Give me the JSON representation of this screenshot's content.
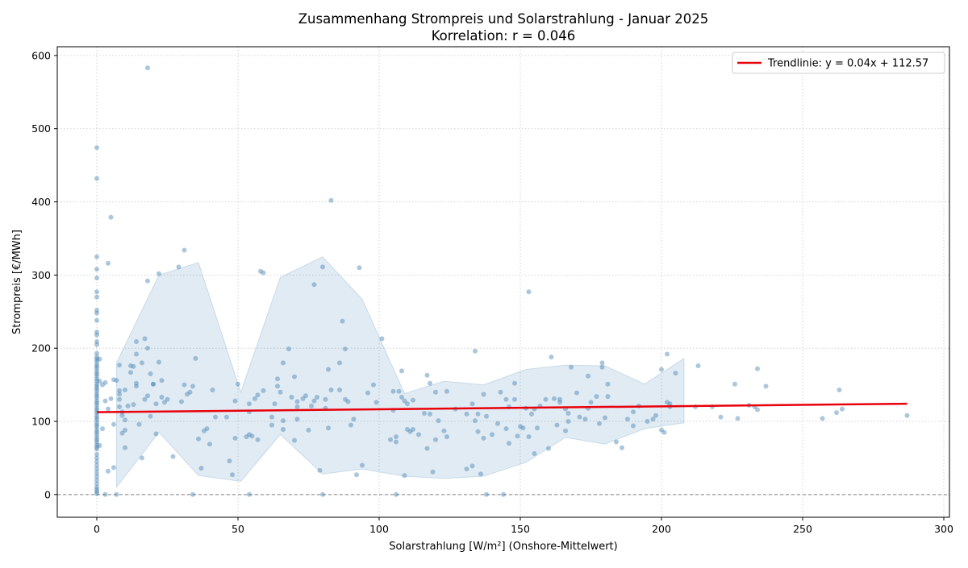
{
  "chart_data": {
    "type": "scatter",
    "title": "Zusammenhang Strompreis und Solarstrahlung - Januar 2025",
    "subtitle": "Korrelation: r = 0.046",
    "xlabel": "Solarstrahlung [W/m²] (Onshore-Mittelwert)",
    "ylabel": "Strompreis [€/MWh]",
    "xlim": [
      -14,
      302
    ],
    "ylim": [
      -31,
      612
    ],
    "xticks": [
      0,
      50,
      100,
      150,
      200,
      250,
      300
    ],
    "yticks": [
      0,
      100,
      200,
      300,
      400,
      500,
      600
    ],
    "grid": true,
    "legend_position": "top-right",
    "colors": {
      "points": "#4682b4",
      "trend": "#e8000b",
      "band": "#4682b4",
      "zero_line": "#808080"
    },
    "trendline": {
      "label": "Trendlinie: y = 0.04x + 112.57",
      "slope": 0.04,
      "intercept": 112.57,
      "x_range": [
        0,
        287
      ]
    },
    "zero_line_y": 0,
    "band": {
      "x": [
        7,
        22,
        36,
        51,
        65,
        80,
        94,
        109,
        123,
        137,
        152,
        166,
        180,
        194,
        208
      ],
      "upper": [
        180,
        300,
        317,
        140,
        297,
        325,
        267,
        138,
        155,
        150,
        171,
        177,
        176,
        151,
        186
      ],
      "lower": [
        10,
        85,
        26,
        18,
        82,
        28,
        35,
        25,
        22,
        25,
        44,
        78,
        69,
        90,
        98
      ]
    },
    "points": [
      [
        0,
        474
      ],
      [
        0,
        432
      ],
      [
        0,
        325
      ],
      [
        0,
        308
      ],
      [
        0,
        296
      ],
      [
        0,
        277
      ],
      [
        0,
        270
      ],
      [
        0,
        252
      ],
      [
        0,
        248
      ],
      [
        0,
        238
      ],
      [
        0,
        222
      ],
      [
        0,
        218
      ],
      [
        0,
        209
      ],
      [
        0,
        205
      ],
      [
        0,
        193
      ],
      [
        0,
        188
      ],
      [
        0,
        185
      ],
      [
        0,
        182
      ],
      [
        0,
        178
      ],
      [
        0,
        175
      ],
      [
        0,
        172
      ],
      [
        0,
        168
      ],
      [
        0,
        165
      ],
      [
        0,
        162
      ],
      [
        0,
        158
      ],
      [
        0,
        155
      ],
      [
        0,
        151
      ],
      [
        0,
        148
      ],
      [
        0,
        145
      ],
      [
        0,
        142
      ],
      [
        0,
        138
      ],
      [
        0,
        135
      ],
      [
        0,
        132
      ],
      [
        0,
        128
      ],
      [
        0,
        125
      ],
      [
        0,
        122
      ],
      [
        0,
        118
      ],
      [
        0,
        115
      ],
      [
        0,
        112
      ],
      [
        0,
        108
      ],
      [
        0,
        105
      ],
      [
        0,
        102
      ],
      [
        0,
        98
      ],
      [
        0,
        95
      ],
      [
        0,
        92
      ],
      [
        0,
        88
      ],
      [
        0,
        85
      ],
      [
        0,
        82
      ],
      [
        0,
        78
      ],
      [
        0,
        75
      ],
      [
        0,
        72
      ],
      [
        0,
        68
      ],
      [
        0,
        65
      ],
      [
        0,
        62
      ],
      [
        0,
        55
      ],
      [
        0,
        50
      ],
      [
        0,
        45
      ],
      [
        0,
        40
      ],
      [
        0,
        35
      ],
      [
        0,
        30
      ],
      [
        0,
        25
      ],
      [
        0,
        20
      ],
      [
        0,
        15
      ],
      [
        0,
        10
      ],
      [
        0,
        7
      ],
      [
        0,
        4
      ],
      [
        0,
        1
      ],
      [
        1,
        185
      ],
      [
        1,
        155
      ],
      [
        1,
        67
      ],
      [
        2,
        150
      ],
      [
        2,
        90
      ],
      [
        3,
        128
      ],
      [
        3,
        0
      ],
      [
        3,
        153
      ],
      [
        4,
        316
      ],
      [
        4,
        117
      ],
      [
        4,
        32
      ],
      [
        5,
        379
      ],
      [
        5,
        131
      ],
      [
        6,
        157
      ],
      [
        6,
        96
      ],
      [
        6,
        37
      ],
      [
        7,
        0
      ],
      [
        7,
        156
      ],
      [
        8,
        120
      ],
      [
        8,
        130
      ],
      [
        8,
        142
      ],
      [
        8,
        177
      ],
      [
        8,
        137
      ],
      [
        9,
        108
      ],
      [
        9,
        84
      ],
      [
        9,
        113
      ],
      [
        10,
        88
      ],
      [
        10,
        64
      ],
      [
        10,
        102
      ],
      [
        10,
        143
      ],
      [
        11,
        121
      ],
      [
        12,
        176
      ],
      [
        12,
        167
      ],
      [
        13,
        123
      ],
      [
        13,
        175
      ],
      [
        14,
        209
      ],
      [
        14,
        148
      ],
      [
        14,
        192
      ],
      [
        14,
        152
      ],
      [
        15,
        96
      ],
      [
        16,
        180
      ],
      [
        16,
        50
      ],
      [
        17,
        213
      ],
      [
        17,
        130
      ],
      [
        18,
        292
      ],
      [
        18,
        583
      ],
      [
        18,
        200
      ],
      [
        18,
        135
      ],
      [
        19,
        165
      ],
      [
        19,
        107
      ],
      [
        20,
        151
      ],
      [
        20,
        151
      ],
      [
        21,
        124
      ],
      [
        21,
        83
      ],
      [
        22,
        302
      ],
      [
        22,
        181
      ],
      [
        23,
        133
      ],
      [
        23,
        156
      ],
      [
        24,
        126
      ],
      [
        25,
        130
      ],
      [
        27,
        52
      ],
      [
        29,
        311
      ],
      [
        30,
        127
      ],
      [
        31,
        334
      ],
      [
        31,
        150
      ],
      [
        32,
        137
      ],
      [
        33,
        140
      ],
      [
        34,
        0
      ],
      [
        34,
        148
      ],
      [
        35,
        186
      ],
      [
        36,
        76
      ],
      [
        37,
        36
      ],
      [
        38,
        87
      ],
      [
        39,
        90
      ],
      [
        40,
        69
      ],
      [
        41,
        143
      ],
      [
        42,
        106
      ],
      [
        46,
        106
      ],
      [
        47,
        46
      ],
      [
        48,
        27
      ],
      [
        49,
        77
      ],
      [
        49,
        128
      ],
      [
        50,
        151
      ],
      [
        53,
        79
      ],
      [
        54,
        82
      ],
      [
        54,
        113
      ],
      [
        54,
        0
      ],
      [
        54,
        124
      ],
      [
        55,
        80
      ],
      [
        56,
        131
      ],
      [
        57,
        75
      ],
      [
        57,
        136
      ],
      [
        58,
        305
      ],
      [
        59,
        142
      ],
      [
        59,
        303
      ],
      [
        62,
        95
      ],
      [
        62,
        106
      ],
      [
        63,
        124
      ],
      [
        64,
        158
      ],
      [
        64,
        148
      ],
      [
        65,
        140
      ],
      [
        66,
        180
      ],
      [
        66,
        89
      ],
      [
        66,
        101
      ],
      [
        68,
        199
      ],
      [
        69,
        133
      ],
      [
        70,
        74
      ],
      [
        70,
        161
      ],
      [
        71,
        120
      ],
      [
        71,
        103
      ],
      [
        71,
        127
      ],
      [
        73,
        131
      ],
      [
        74,
        135
      ],
      [
        75,
        88
      ],
      [
        76,
        121
      ],
      [
        77,
        287
      ],
      [
        77,
        128
      ],
      [
        78,
        133
      ],
      [
        79,
        33
      ],
      [
        80,
        311
      ],
      [
        80,
        0
      ],
      [
        81,
        118
      ],
      [
        81,
        130
      ],
      [
        82,
        171
      ],
      [
        82,
        91
      ],
      [
        83,
        143
      ],
      [
        83,
        402
      ],
      [
        86,
        180
      ],
      [
        86,
        143
      ],
      [
        87,
        237
      ],
      [
        88,
        130
      ],
      [
        88,
        199
      ],
      [
        89,
        127
      ],
      [
        90,
        95
      ],
      [
        91,
        103
      ],
      [
        92,
        27
      ],
      [
        93,
        310
      ],
      [
        94,
        40
      ],
      [
        96,
        139
      ],
      [
        98,
        150
      ],
      [
        99,
        126
      ],
      [
        101,
        213
      ],
      [
        104,
        75
      ],
      [
        105,
        141
      ],
      [
        105,
        115
      ],
      [
        106,
        79
      ],
      [
        106,
        72
      ],
      [
        106,
        0
      ],
      [
        107,
        141
      ],
      [
        108,
        169
      ],
      [
        108,
        133
      ],
      [
        109,
        26
      ],
      [
        109,
        128
      ],
      [
        110,
        89
      ],
      [
        110,
        124
      ],
      [
        111,
        86
      ],
      [
        112,
        129
      ],
      [
        112,
        89
      ],
      [
        114,
        82
      ],
      [
        116,
        111
      ],
      [
        117,
        63
      ],
      [
        117,
        163
      ],
      [
        118,
        110
      ],
      [
        118,
        152
      ],
      [
        119,
        31
      ],
      [
        120,
        140
      ],
      [
        120,
        75
      ],
      [
        121,
        101
      ],
      [
        123,
        87
      ],
      [
        124,
        141
      ],
      [
        124,
        79
      ],
      [
        127,
        117
      ],
      [
        131,
        110
      ],
      [
        131,
        35
      ],
      [
        133,
        124
      ],
      [
        133,
        39
      ],
      [
        134,
        196
      ],
      [
        134,
        101
      ],
      [
        135,
        110
      ],
      [
        135,
        86
      ],
      [
        136,
        28
      ],
      [
        137,
        77
      ],
      [
        137,
        137
      ],
      [
        138,
        0
      ],
      [
        138,
        107
      ],
      [
        140,
        82
      ],
      [
        142,
        97
      ],
      [
        143,
        140
      ],
      [
        144,
        0
      ],
      [
        145,
        90
      ],
      [
        145,
        130
      ],
      [
        146,
        70
      ],
      [
        146,
        120
      ],
      [
        148,
        152
      ],
      [
        148,
        130
      ],
      [
        149,
        80
      ],
      [
        150,
        93
      ],
      [
        151,
        91
      ],
      [
        152,
        118
      ],
      [
        153,
        277
      ],
      [
        153,
        79
      ],
      [
        154,
        110
      ],
      [
        155,
        56
      ],
      [
        155,
        117
      ],
      [
        156,
        91
      ],
      [
        157,
        121
      ],
      [
        159,
        130
      ],
      [
        160,
        63
      ],
      [
        161,
        188
      ],
      [
        162,
        131
      ],
      [
        163,
        95
      ],
      [
        164,
        126
      ],
      [
        164,
        130
      ],
      [
        166,
        87
      ],
      [
        166,
        117
      ],
      [
        167,
        111
      ],
      [
        167,
        100
      ],
      [
        168,
        174
      ],
      [
        170,
        139
      ],
      [
        171,
        106
      ],
      [
        173,
        103
      ],
      [
        174,
        162
      ],
      [
        174,
        118
      ],
      [
        175,
        126
      ],
      [
        177,
        134
      ],
      [
        178,
        97
      ],
      [
        179,
        180
      ],
      [
        179,
        174
      ],
      [
        180,
        105
      ],
      [
        181,
        134
      ],
      [
        181,
        151
      ],
      [
        184,
        72
      ],
      [
        186,
        64
      ],
      [
        188,
        103
      ],
      [
        190,
        94
      ],
      [
        190,
        113
      ],
      [
        192,
        121
      ],
      [
        195,
        100
      ],
      [
        197,
        103
      ],
      [
        198,
        108
      ],
      [
        200,
        171
      ],
      [
        200,
        88
      ],
      [
        201,
        85
      ],
      [
        202,
        192
      ],
      [
        202,
        126
      ],
      [
        203,
        120
      ],
      [
        203,
        124
      ],
      [
        205,
        166
      ],
      [
        212,
        120
      ],
      [
        213,
        176
      ],
      [
        218,
        120
      ],
      [
        221,
        106
      ],
      [
        226,
        151
      ],
      [
        227,
        104
      ],
      [
        231,
        122
      ],
      [
        233,
        120
      ],
      [
        234,
        116
      ],
      [
        234,
        172
      ],
      [
        237,
        148
      ],
      [
        257,
        104
      ],
      [
        262,
        112
      ],
      [
        263,
        143
      ],
      [
        264,
        117
      ],
      [
        287,
        108
      ]
    ]
  }
}
